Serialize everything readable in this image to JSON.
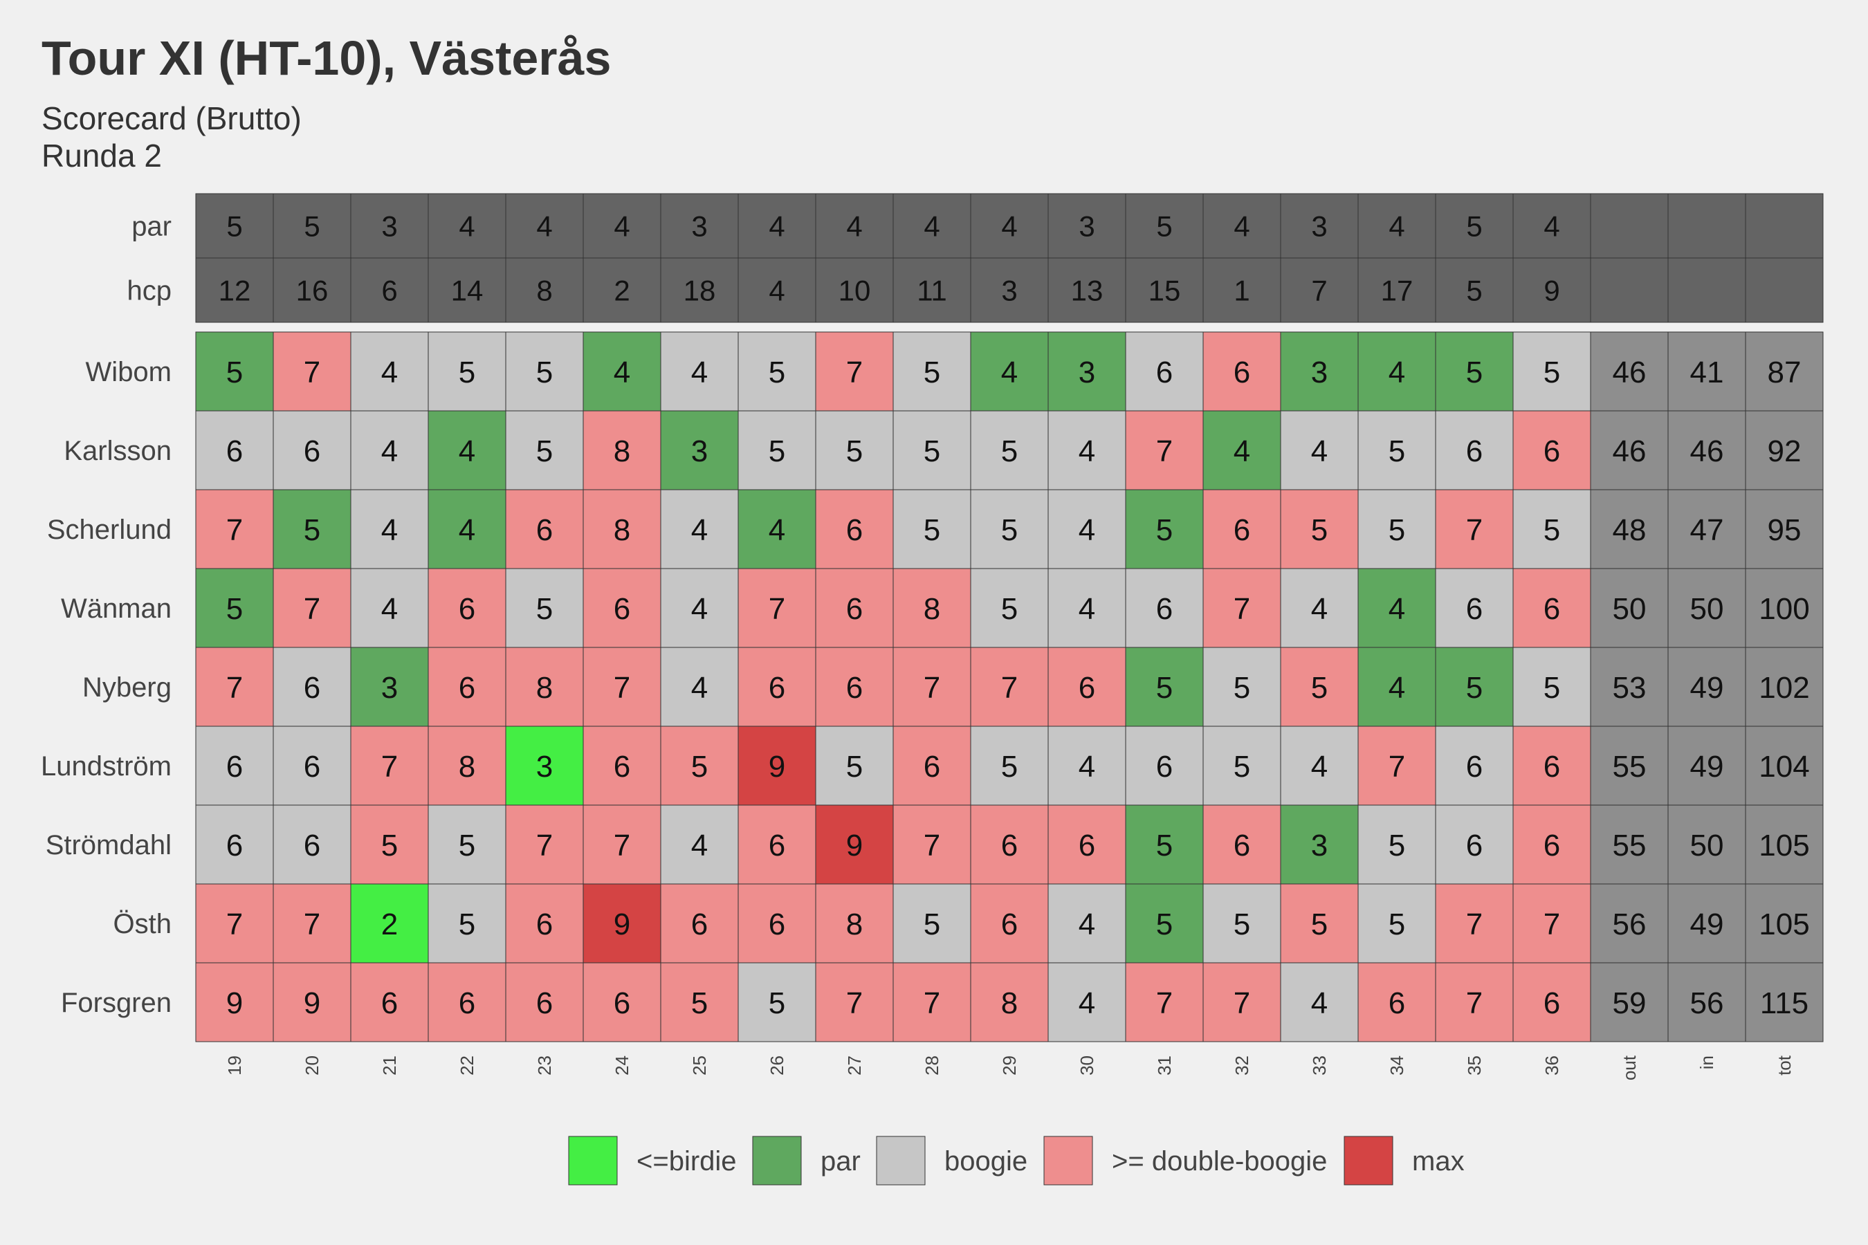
{
  "title": "Tour XI (HT-10), Västerås",
  "subtitle_line1": "Scorecard (Brutto)",
  "subtitle_line2": "Runda 2",
  "chart_data": {
    "type": "heatmap",
    "columns": [
      "19",
      "20",
      "21",
      "22",
      "23",
      "24",
      "25",
      "26",
      "27",
      "28",
      "29",
      "30",
      "31",
      "32",
      "33",
      "34",
      "35",
      "36",
      "out",
      "in",
      "tot"
    ],
    "header_rows": [
      {
        "label": "par",
        "values": [
          5,
          5,
          3,
          4,
          4,
          4,
          3,
          4,
          4,
          4,
          4,
          3,
          5,
          4,
          3,
          4,
          5,
          4
        ]
      },
      {
        "label": "hcp",
        "values": [
          12,
          16,
          6,
          14,
          8,
          2,
          18,
          4,
          10,
          11,
          3,
          13,
          15,
          1,
          7,
          17,
          5,
          9
        ]
      }
    ],
    "players": [
      {
        "name": "Wibom",
        "scores": [
          5,
          7,
          4,
          5,
          5,
          4,
          4,
          5,
          7,
          5,
          4,
          3,
          6,
          6,
          3,
          4,
          5,
          5
        ],
        "categories": [
          "par",
          "dbl",
          "bog",
          "bog",
          "bog",
          "par",
          "bog",
          "bog",
          "dbl",
          "bog",
          "par",
          "par",
          "bog",
          "dbl",
          "par",
          "par",
          "par",
          "bog"
        ],
        "out": 46,
        "in": 41,
        "tot": 87
      },
      {
        "name": "Karlsson",
        "scores": [
          6,
          6,
          4,
          4,
          5,
          8,
          3,
          5,
          5,
          5,
          5,
          4,
          7,
          4,
          4,
          5,
          6,
          6
        ],
        "categories": [
          "bog",
          "bog",
          "bog",
          "par",
          "bog",
          "dbl",
          "par",
          "bog",
          "bog",
          "bog",
          "bog",
          "bog",
          "dbl",
          "par",
          "bog",
          "bog",
          "bog",
          "dbl"
        ],
        "out": 46,
        "in": 46,
        "tot": 92
      },
      {
        "name": "Scherlund",
        "scores": [
          7,
          5,
          4,
          4,
          6,
          8,
          4,
          4,
          6,
          5,
          5,
          4,
          5,
          6,
          5,
          5,
          7,
          5
        ],
        "categories": [
          "dbl",
          "par",
          "bog",
          "par",
          "dbl",
          "dbl",
          "bog",
          "par",
          "dbl",
          "bog",
          "bog",
          "bog",
          "par",
          "dbl",
          "dbl",
          "bog",
          "dbl",
          "bog"
        ],
        "out": 48,
        "in": 47,
        "tot": 95
      },
      {
        "name": "Wänman",
        "scores": [
          5,
          7,
          4,
          6,
          5,
          6,
          4,
          7,
          6,
          8,
          5,
          4,
          6,
          7,
          4,
          4,
          6,
          6
        ],
        "categories": [
          "par",
          "dbl",
          "bog",
          "dbl",
          "bog",
          "dbl",
          "bog",
          "dbl",
          "dbl",
          "dbl",
          "bog",
          "bog",
          "bog",
          "dbl",
          "bog",
          "par",
          "bog",
          "dbl"
        ],
        "out": 50,
        "in": 50,
        "tot": 100
      },
      {
        "name": "Nyberg",
        "scores": [
          7,
          6,
          3,
          6,
          8,
          7,
          4,
          6,
          6,
          7,
          7,
          6,
          5,
          5,
          5,
          4,
          5,
          5
        ],
        "categories": [
          "dbl",
          "bog",
          "par",
          "dbl",
          "dbl",
          "dbl",
          "bog",
          "dbl",
          "dbl",
          "dbl",
          "dbl",
          "dbl",
          "par",
          "bog",
          "dbl",
          "par",
          "par",
          "bog"
        ],
        "out": 53,
        "in": 49,
        "tot": 102
      },
      {
        "name": "Lundström",
        "scores": [
          6,
          6,
          7,
          8,
          3,
          6,
          5,
          9,
          5,
          6,
          5,
          4,
          6,
          5,
          4,
          7,
          6,
          6
        ],
        "categories": [
          "bog",
          "bog",
          "dbl",
          "dbl",
          "bir",
          "dbl",
          "dbl",
          "max",
          "bog",
          "dbl",
          "bog",
          "bog",
          "bog",
          "bog",
          "bog",
          "dbl",
          "bog",
          "dbl"
        ],
        "out": 55,
        "in": 49,
        "tot": 104
      },
      {
        "name": "Strömdahl",
        "scores": [
          6,
          6,
          5,
          5,
          7,
          7,
          4,
          6,
          9,
          7,
          6,
          6,
          5,
          6,
          3,
          5,
          6,
          6
        ],
        "categories": [
          "bog",
          "bog",
          "dbl",
          "bog",
          "dbl",
          "dbl",
          "bog",
          "dbl",
          "max",
          "dbl",
          "dbl",
          "dbl",
          "par",
          "dbl",
          "par",
          "bog",
          "bog",
          "dbl"
        ],
        "out": 55,
        "in": 50,
        "tot": 105
      },
      {
        "name": "Östh",
        "scores": [
          7,
          7,
          2,
          5,
          6,
          9,
          6,
          6,
          8,
          5,
          6,
          4,
          5,
          5,
          5,
          5,
          7,
          7
        ],
        "categories": [
          "dbl",
          "dbl",
          "bir",
          "bog",
          "dbl",
          "max",
          "dbl",
          "dbl",
          "dbl",
          "bog",
          "dbl",
          "bog",
          "par",
          "bog",
          "dbl",
          "bog",
          "dbl",
          "dbl"
        ],
        "out": 56,
        "in": 49,
        "tot": 105
      },
      {
        "name": "Forsgren",
        "scores": [
          9,
          9,
          6,
          6,
          6,
          6,
          5,
          5,
          7,
          7,
          8,
          4,
          7,
          7,
          4,
          6,
          7,
          6
        ],
        "categories": [
          "dbl",
          "dbl",
          "dbl",
          "dbl",
          "dbl",
          "dbl",
          "dbl",
          "bog",
          "dbl",
          "dbl",
          "dbl",
          "bog",
          "dbl",
          "dbl",
          "bog",
          "dbl",
          "dbl",
          "dbl"
        ],
        "out": 59,
        "in": 56,
        "tot": 115
      }
    ],
    "legend": [
      {
        "key": "bir",
        "label": "<=birdie",
        "color": "#44ee44"
      },
      {
        "key": "par",
        "label": "par",
        "color": "#5fa85f"
      },
      {
        "key": "bog",
        "label": "boogie",
        "color": "#c6c6c6"
      },
      {
        "key": "dbl",
        "label": ">= double-boogie",
        "color": "#ee8e8e"
      },
      {
        "key": "max",
        "label": "max",
        "color": "#d44444"
      }
    ],
    "colors": {
      "header_fill": "#646464",
      "totals_fill": "#8e8e8e",
      "grid_line": "#333333",
      "background": "#f0f0f0"
    },
    "legend_position": "bottom"
  }
}
